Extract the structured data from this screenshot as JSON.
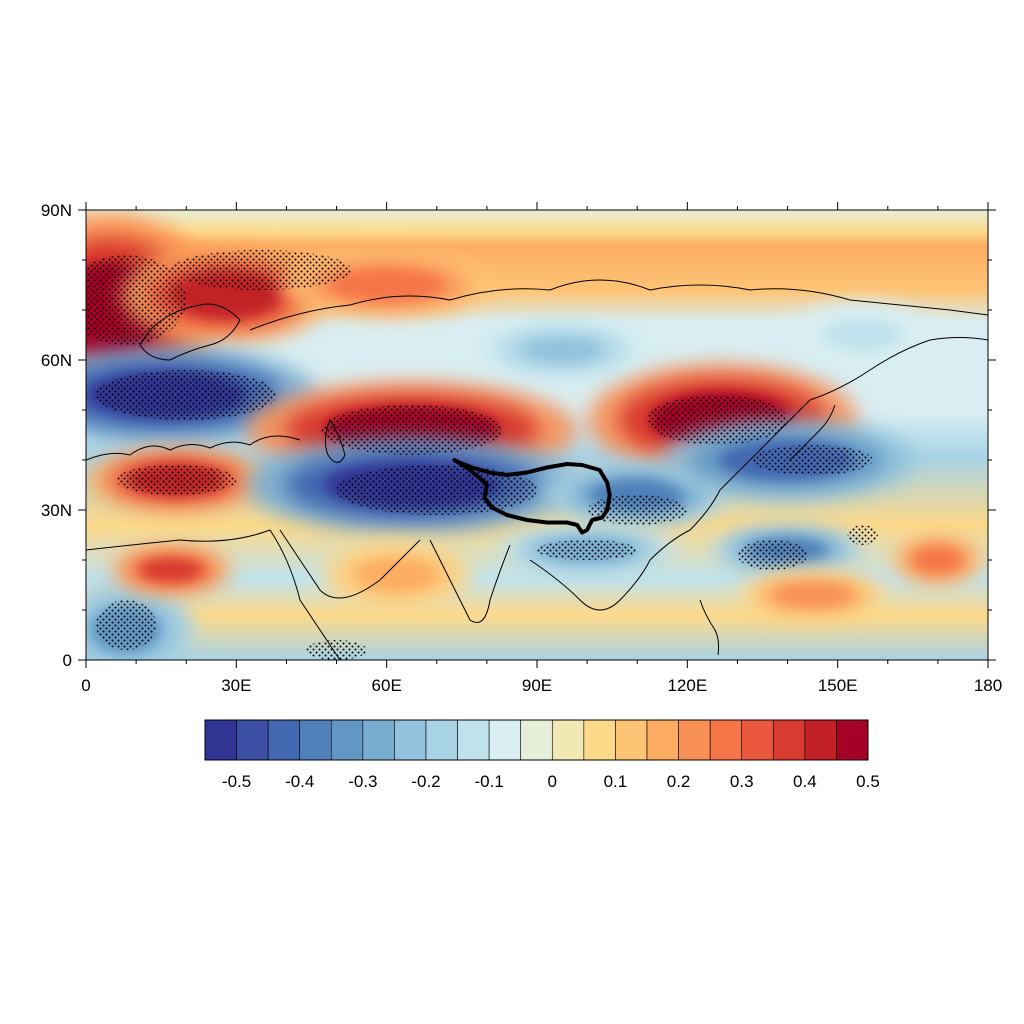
{
  "map": {
    "type": "contour-map",
    "lon_range": [
      0,
      180
    ],
    "lat_range": [
      0,
      90
    ],
    "lon_ticks": [
      {
        "value": 0,
        "label": "0"
      },
      {
        "value": 30,
        "label": "30E"
      },
      {
        "value": 60,
        "label": "60E"
      },
      {
        "value": 90,
        "label": "90E"
      },
      {
        "value": 120,
        "label": "120E"
      },
      {
        "value": 150,
        "label": "150E"
      },
      {
        "value": 180,
        "label": "180"
      }
    ],
    "lat_ticks": [
      {
        "value": 0,
        "label": "0"
      },
      {
        "value": 30,
        "label": "30N"
      },
      {
        "value": 60,
        "label": "60N"
      },
      {
        "value": 90,
        "label": "90N"
      }
    ],
    "features": [
      {
        "name": "positive-anomaly",
        "lon": 5,
        "lat": 70,
        "rx": 14,
        "ry": 12,
        "value": 0.5
      },
      {
        "name": "positive-anomaly",
        "lon": 28,
        "lat": 73,
        "rx": 14,
        "ry": 6,
        "value": 0.45
      },
      {
        "name": "positive-anomaly",
        "lon": 60,
        "lat": 75,
        "rx": 14,
        "ry": 4,
        "value": 0.3
      },
      {
        "name": "negative-anomaly",
        "lon": 16,
        "lat": 53,
        "rx": 20,
        "ry": 6,
        "value": -0.55
      },
      {
        "name": "positive-anomaly",
        "lon": 65,
        "lat": 46,
        "rx": 22,
        "ry": 6,
        "value": 0.55
      },
      {
        "name": "positive-anomaly",
        "lon": 127,
        "lat": 48,
        "rx": 18,
        "ry": 7,
        "value": 0.5
      },
      {
        "name": "positive-anomaly",
        "lon": 18,
        "lat": 36,
        "rx": 12,
        "ry": 4,
        "value": 0.45
      },
      {
        "name": "negative-anomaly",
        "lon": 65,
        "lat": 35,
        "rx": 22,
        "ry": 6,
        "value": -0.55
      },
      {
        "name": "negative-anomaly",
        "lon": 110,
        "lat": 33,
        "rx": 12,
        "ry": 4,
        "value": -0.35
      },
      {
        "name": "negative-anomaly",
        "lon": 140,
        "lat": 40,
        "rx": 17,
        "ry": 5,
        "value": -0.4
      },
      {
        "name": "negative-anomaly",
        "lon": 100,
        "lat": 22,
        "rx": 12,
        "ry": 3,
        "value": -0.25
      },
      {
        "name": "negative-anomaly",
        "lon": 140,
        "lat": 22,
        "rx": 10,
        "ry": 3,
        "value": -0.35
      },
      {
        "name": "negative-anomaly",
        "lon": 95,
        "lat": 62,
        "rx": 10,
        "ry": 3,
        "value": -0.2
      },
      {
        "name": "negative-anomaly",
        "lon": 155,
        "lat": 65,
        "rx": 10,
        "ry": 4,
        "value": -0.1
      },
      {
        "name": "negative-anomaly",
        "lon": 8,
        "lat": 6,
        "rx": 9,
        "ry": 6,
        "value": -0.3
      },
      {
        "name": "positive-anomaly",
        "lon": 17,
        "lat": 18,
        "rx": 8,
        "ry": 3,
        "value": 0.4
      },
      {
        "name": "positive-anomaly",
        "lon": 62,
        "lat": 17,
        "rx": 10,
        "ry": 4,
        "value": 0.2
      },
      {
        "name": "positive-anomaly",
        "lon": 170,
        "lat": 20,
        "rx": 6,
        "ry": 3,
        "value": 0.3
      },
      {
        "name": "positive-anomaly",
        "lon": 145,
        "lat": 13,
        "rx": 10,
        "ry": 3,
        "value": 0.25
      }
    ],
    "significance_regions": [
      {
        "lon": 8,
        "lat": 72,
        "rx": 12,
        "ry": 9
      },
      {
        "lon": 35,
        "lat": 78,
        "rx": 18,
        "ry": 4
      },
      {
        "lon": 20,
        "lat": 53,
        "rx": 18,
        "ry": 5
      },
      {
        "lon": 65,
        "lat": 46,
        "rx": 18,
        "ry": 5
      },
      {
        "lon": 126,
        "lat": 48,
        "rx": 14,
        "ry": 5
      },
      {
        "lon": 18,
        "lat": 36,
        "rx": 12,
        "ry": 3
      },
      {
        "lon": 70,
        "lat": 34,
        "rx": 20,
        "ry": 5
      },
      {
        "lon": 145,
        "lat": 40,
        "rx": 12,
        "ry": 3
      },
      {
        "lon": 110,
        "lat": 30,
        "rx": 10,
        "ry": 3
      },
      {
        "lon": 100,
        "lat": 22,
        "rx": 10,
        "ry": 2
      },
      {
        "lon": 137,
        "lat": 21,
        "rx": 7,
        "ry": 3
      },
      {
        "lon": 155,
        "lat": 25,
        "rx": 3,
        "ry": 2
      },
      {
        "lon": 8,
        "lat": 7,
        "rx": 6,
        "ry": 5
      },
      {
        "lon": 50,
        "lat": 2,
        "rx": 6,
        "ry": 2
      }
    ],
    "tibetan_plateau_outline": [
      [
        73.5,
        40
      ],
      [
        76,
        38.5
      ],
      [
        79,
        36
      ],
      [
        80,
        35
      ],
      [
        79.5,
        32.5
      ],
      [
        81,
        30.5
      ],
      [
        84,
        29
      ],
      [
        88,
        28
      ],
      [
        92,
        27.5
      ],
      [
        96,
        27.5
      ],
      [
        98,
        27
      ],
      [
        99,
        25.5
      ],
      [
        100,
        26
      ],
      [
        101,
        28
      ],
      [
        103,
        28.5
      ],
      [
        104,
        30
      ],
      [
        104.5,
        33
      ],
      [
        104,
        35.5
      ],
      [
        102.5,
        38
      ],
      [
        99,
        39
      ],
      [
        96,
        39.2
      ],
      [
        92,
        38.5
      ],
      [
        88,
        37.5
      ],
      [
        84,
        37
      ],
      [
        80.5,
        37.5
      ],
      [
        77,
        38.5
      ],
      [
        74.5,
        39.5
      ]
    ]
  },
  "colorbar": {
    "colors": [
      "#313695",
      "#3a4fa3",
      "#4268b1",
      "#4f80b8",
      "#6398c4",
      "#79acd1",
      "#92c2dd",
      "#a8d3e6",
      "#c0e2ed",
      "#d8eef2",
      "#e6eed8",
      "#f2e8b4",
      "#fdd98a",
      "#fdc476",
      "#fcad62",
      "#f99156",
      "#f57549",
      "#e9583c",
      "#d83b2f",
      "#c12126",
      "#a50026"
    ],
    "labels": [
      "-0.5",
      "-0.4",
      "-0.3",
      "-0.2",
      "-0.1",
      "0",
      "0.1",
      "0.2",
      "0.3",
      "0.4",
      "0.5"
    ]
  }
}
